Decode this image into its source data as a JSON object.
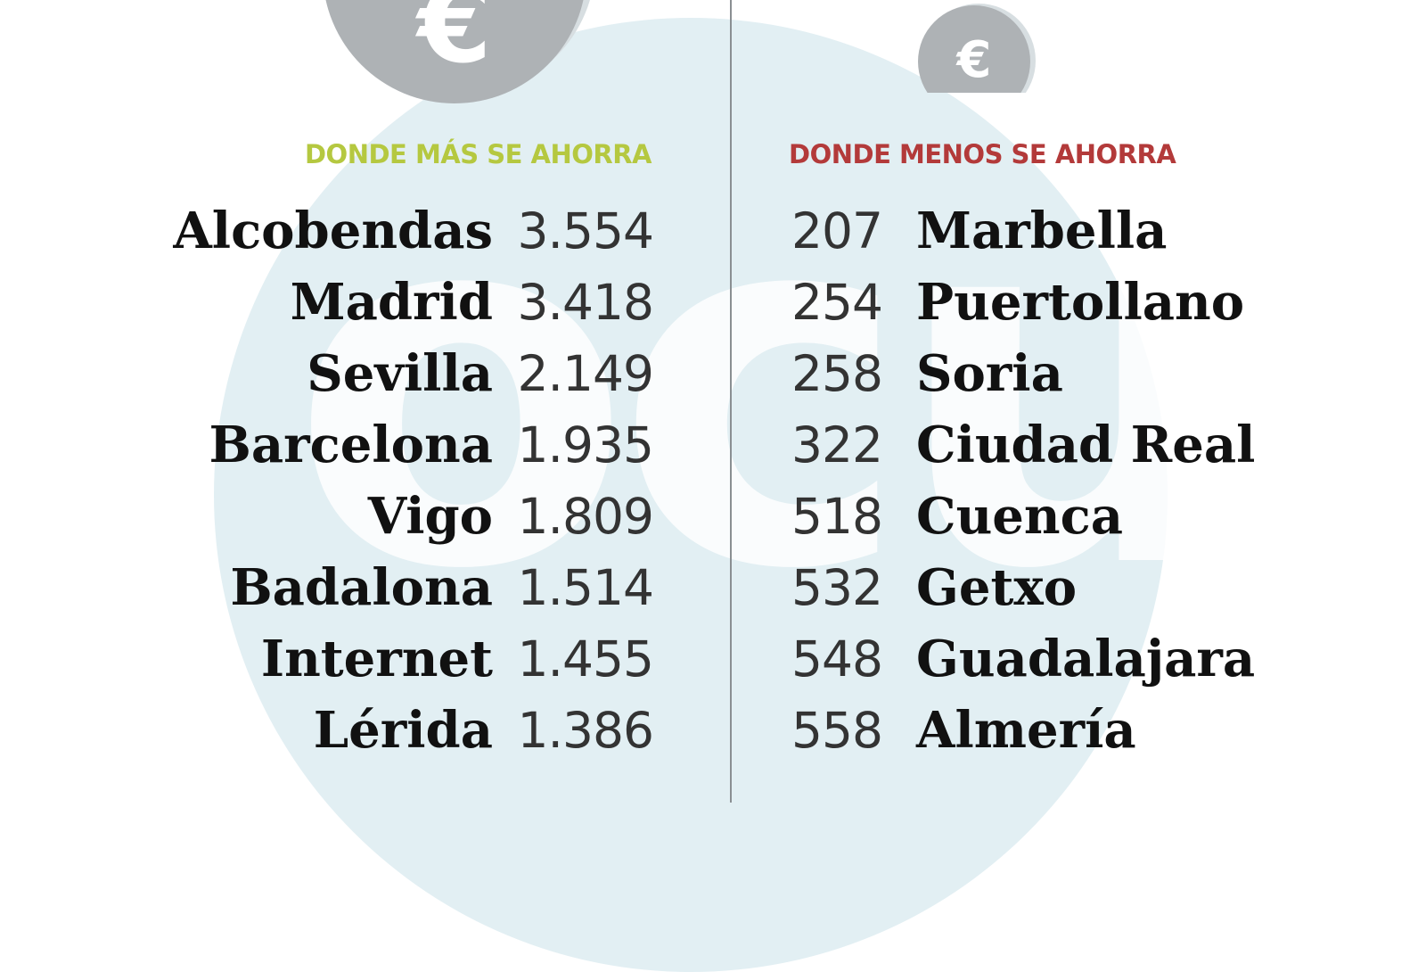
{
  "left": {
    "heading": "DONDE MÁS SE AHORRA",
    "icon": "euro-coin-icon",
    "rows": [
      {
        "city": "Alcobendas",
        "value": "3.554"
      },
      {
        "city": "Madrid",
        "value": "3.418"
      },
      {
        "city": "Sevilla",
        "value": "2.149"
      },
      {
        "city": "Barcelona",
        "value": "1.935"
      },
      {
        "city": "Vigo",
        "value": "1.809"
      },
      {
        "city": "Badalona",
        "value": "1.514"
      },
      {
        "city": "Internet",
        "value": "1.455"
      },
      {
        "city": "Lérida",
        "value": "1.386"
      }
    ]
  },
  "right": {
    "heading": "DONDE MENOS SE AHORRA",
    "icon": "euro-coin-icon",
    "rows": [
      {
        "value": "207",
        "city": "Marbella"
      },
      {
        "value": "254",
        "city": "Puertollano"
      },
      {
        "value": "258",
        "city": "Soria"
      },
      {
        "value": "322",
        "city": "Ciudad Real"
      },
      {
        "value": "518",
        "city": "Cuenca"
      },
      {
        "value": "532",
        "city": "Getxo"
      },
      {
        "value": "548",
        "city": "Guadalajara"
      },
      {
        "value": "558",
        "city": "Almería"
      }
    ]
  },
  "symbols": {
    "euro": "€",
    "watermark": "ocu"
  },
  "colors": {
    "left_heading": "#b5c840",
    "right_heading": "#b33a3a",
    "coin": "#aeb2b5",
    "watermark": "#e2eff3"
  }
}
